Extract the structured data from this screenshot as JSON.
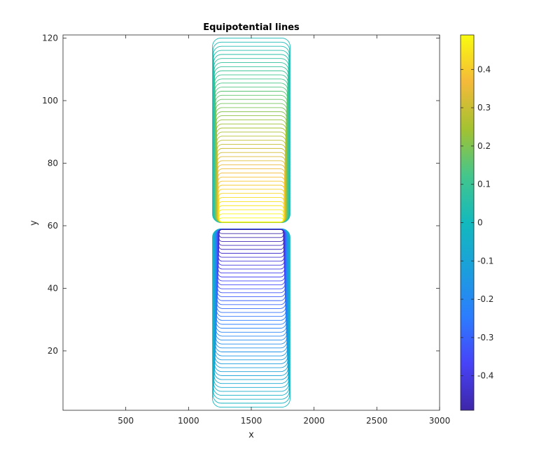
{
  "chart_data": {
    "type": "contour",
    "title": "Equipotential lines",
    "xlabel": "x",
    "ylabel": "y",
    "xlim": [
      0,
      3000
    ],
    "ylim": [
      1,
      121
    ],
    "xticks": [
      500,
      1000,
      1500,
      2000,
      2500,
      3000
    ],
    "yticks": [
      20,
      40,
      60,
      80,
      100,
      120
    ],
    "colormap": "parula",
    "colorbar": {
      "range": [
        -0.49,
        0.49
      ],
      "ticks": [
        -0.4,
        -0.3,
        -0.2,
        -0.1,
        0,
        0.1,
        0.2,
        0.3,
        0.4
      ],
      "tick_labels": [
        "-0.4",
        "-0.3",
        "-0.2",
        "-0.1",
        "0",
        "0.1",
        "0.2",
        "0.3",
        "0.4"
      ],
      "colors": [
        "#3e26a8",
        "#4743f8",
        "#2c7dfe",
        "#1b9fdc",
        "#13b9bd",
        "#44c68c",
        "#a4c230",
        "#f5ba39",
        "#f9fb0e"
      ]
    },
    "regions": [
      {
        "name": "upper",
        "sign": "positive",
        "x_range": [
          1200,
          1800
        ],
        "y_range": [
          61,
          120
        ]
      },
      {
        "name": "lower",
        "sign": "negative",
        "x_range": [
          1200,
          1800
        ],
        "y_range": [
          2,
          59
        ]
      }
    ],
    "contour_levels": 45,
    "grid": false,
    "box": true
  }
}
